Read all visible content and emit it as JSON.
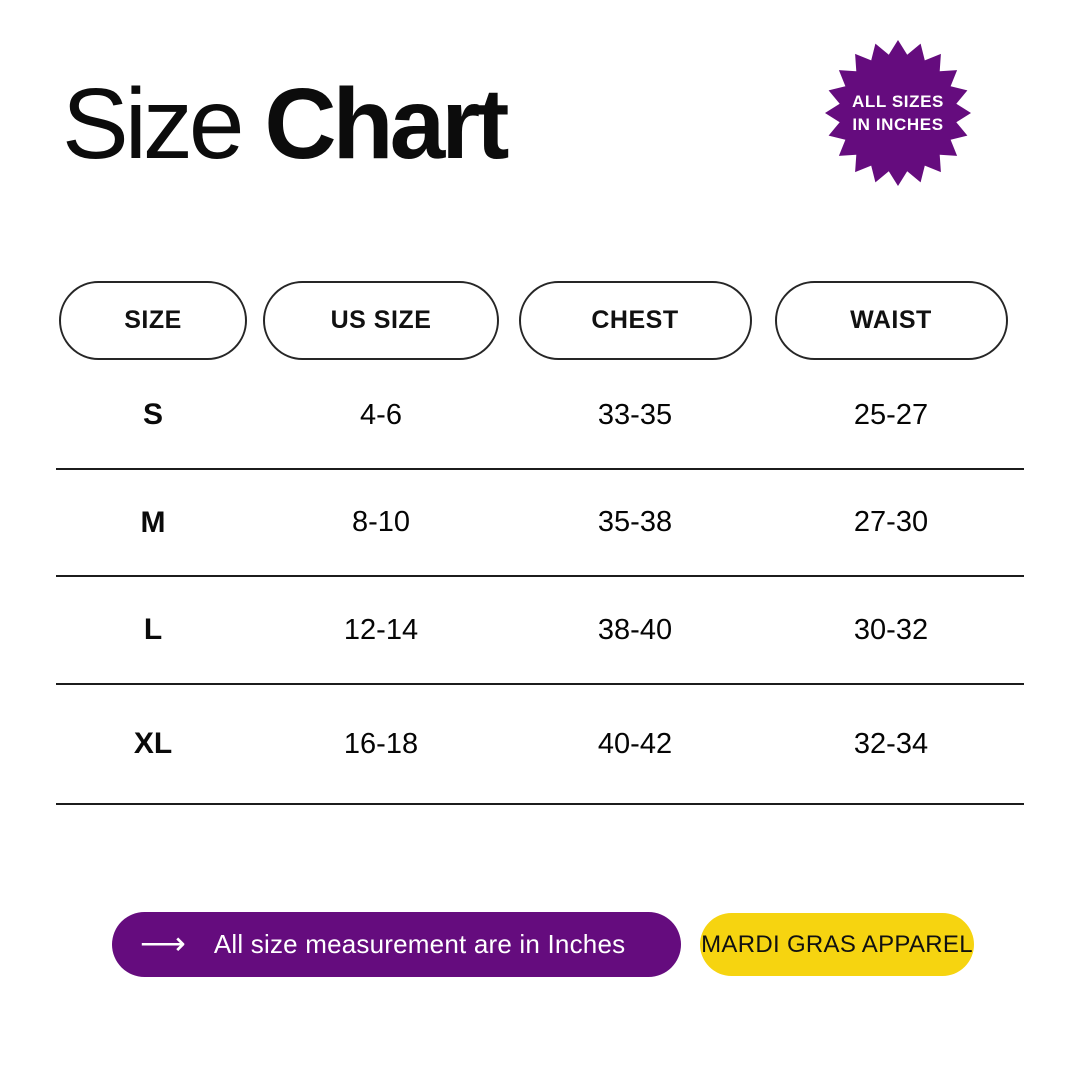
{
  "title": {
    "regular": "Size",
    "bold": "Chart"
  },
  "badge": {
    "line1": "ALL SIZES",
    "line2": "IN INCHES",
    "bg_color": "#650c7e",
    "text_color": "#ffffff"
  },
  "chart_data": {
    "type": "table",
    "title": "Size Chart",
    "columns": [
      "SIZE",
      "US SIZE",
      "CHEST",
      "WAIST"
    ],
    "rows": [
      [
        "S",
        "4-6",
        "33-35",
        "25-27"
      ],
      [
        "M",
        "8-10",
        "35-38",
        "27-30"
      ],
      [
        "L",
        "12-14",
        "38-40",
        "30-32"
      ],
      [
        "XL",
        "16-18",
        "40-42",
        "32-34"
      ]
    ]
  },
  "footer": {
    "arrow_glyph": "⟶",
    "note_text": "All size measurement are in Inches",
    "note_bg": "#650c7e",
    "brand_text": "MARDI GRAS APPAREL",
    "brand_bg": "#f6d410"
  },
  "colors": {
    "purple": "#650c7e",
    "yellow": "#f6d410",
    "divider": "#1c1c1c",
    "text": "#0c0c0c"
  }
}
